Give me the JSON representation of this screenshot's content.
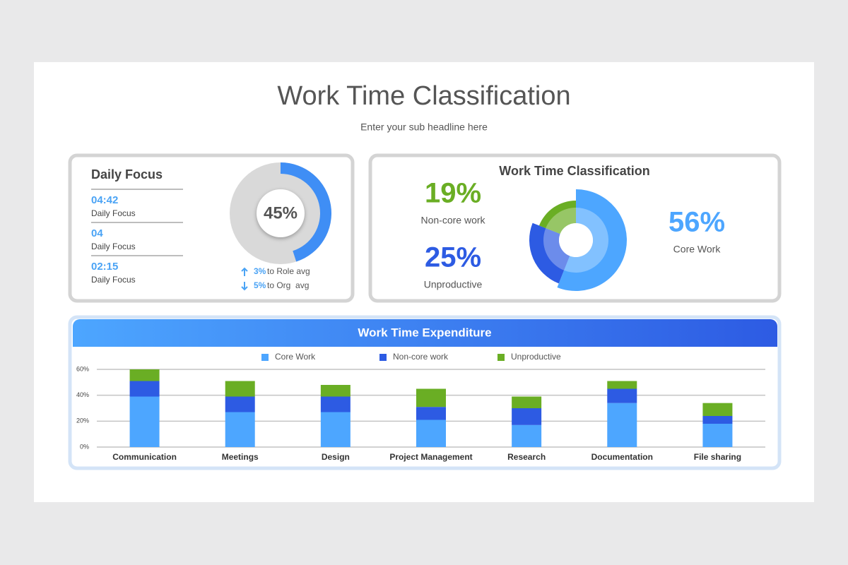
{
  "header": {
    "title": "Work Time Classification",
    "subtitle": "Enter your sub headline here"
  },
  "daily_focus": {
    "title": "Daily Focus",
    "items": [
      {
        "value": "04:42",
        "label": "Daily Focus"
      },
      {
        "value": "04",
        "label": "Daily Focus"
      },
      {
        "value": "02:15",
        "label": "Daily Focus"
      }
    ],
    "comparisons": [
      {
        "change": "3%",
        "text": "to Role avg",
        "direction": "up"
      },
      {
        "change": "5%",
        "text": "to Org  avg",
        "direction": "down"
      }
    ]
  },
  "chart_data": [
    {
      "type": "donut",
      "values": [
        45
      ],
      "value_labels": [
        "45%"
      ],
      "color": "#3f8ef5",
      "track_color": "#d9d9d9"
    },
    {
      "type": "pie",
      "title": "Work Time Classification",
      "categories": [
        "Core Work",
        "Unproductive",
        "Non-core work"
      ],
      "values": [
        56,
        25,
        19
      ],
      "value_labels": [
        "56%",
        "25%",
        "19%"
      ],
      "colors": [
        "#4da6ff",
        "#2d5be3",
        "#6aae24"
      ]
    },
    {
      "type": "stacked_bar",
      "title": "Work Time Expenditure",
      "categories": [
        "Communication",
        "Meetings",
        "Design",
        "Project Management",
        "Research",
        "Documentation",
        "File sharing"
      ],
      "series": [
        {
          "name": "Core Work",
          "color": "#4da6ff",
          "values": [
            39,
            27,
            27,
            21,
            17,
            34,
            18
          ]
        },
        {
          "name": "Non-core work",
          "color": "#2d5be3",
          "values": [
            12,
            12,
            12,
            10,
            13,
            11,
            6
          ]
        },
        {
          "name": "Unproductive",
          "color": "#6aae24",
          "values": [
            9,
            12,
            9,
            14,
            9,
            6,
            10
          ]
        }
      ],
      "ylim": [
        0,
        60
      ],
      "yticks": [
        {
          "value": 0,
          "label": "0%"
        },
        {
          "value": 20,
          "label": "20%"
        },
        {
          "value": 40,
          "label": "40%"
        },
        {
          "value": 60,
          "label": "60%"
        }
      ],
      "grid": true,
      "legend": "top"
    }
  ]
}
